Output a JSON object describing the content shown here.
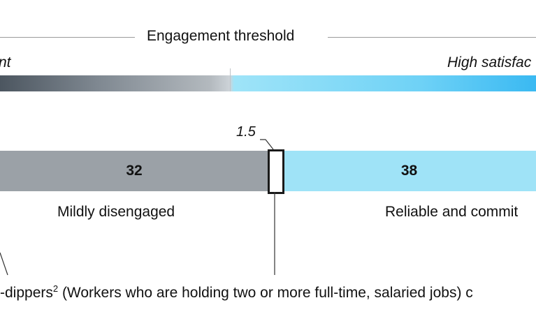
{
  "header": {
    "threshold_label": "Engagement threshold",
    "left_label": "nt",
    "right_label": "High satisfac"
  },
  "chart_data": {
    "type": "bar",
    "orientation": "horizontal-stacked",
    "segments": [
      {
        "name": "Mildly disengaged",
        "value": 32,
        "color": "#9ba1a7"
      },
      {
        "name": "Double-dippers",
        "value": 1.5,
        "color": "#ffffff"
      },
      {
        "name": "Reliable and commit",
        "value": 38,
        "color": "#9fe3f7"
      }
    ]
  },
  "labels": {
    "seg1_value": "32",
    "seg2_value": "38",
    "seg1_name": "Mildly disengaged",
    "seg2_name": "Reliable and commit",
    "callout_value": "1.5"
  },
  "footnote": {
    "prefix": "-dippers",
    "superscript": "2",
    "suffix": " (Workers who are holding two or more full-time, salaried jobs) c"
  },
  "colors": {
    "grey_segment": "#9ba1a7",
    "blue_segment": "#9fe3f7",
    "gradient_dark": "#4c5660",
    "gradient_bright": "#3ab9f2"
  }
}
